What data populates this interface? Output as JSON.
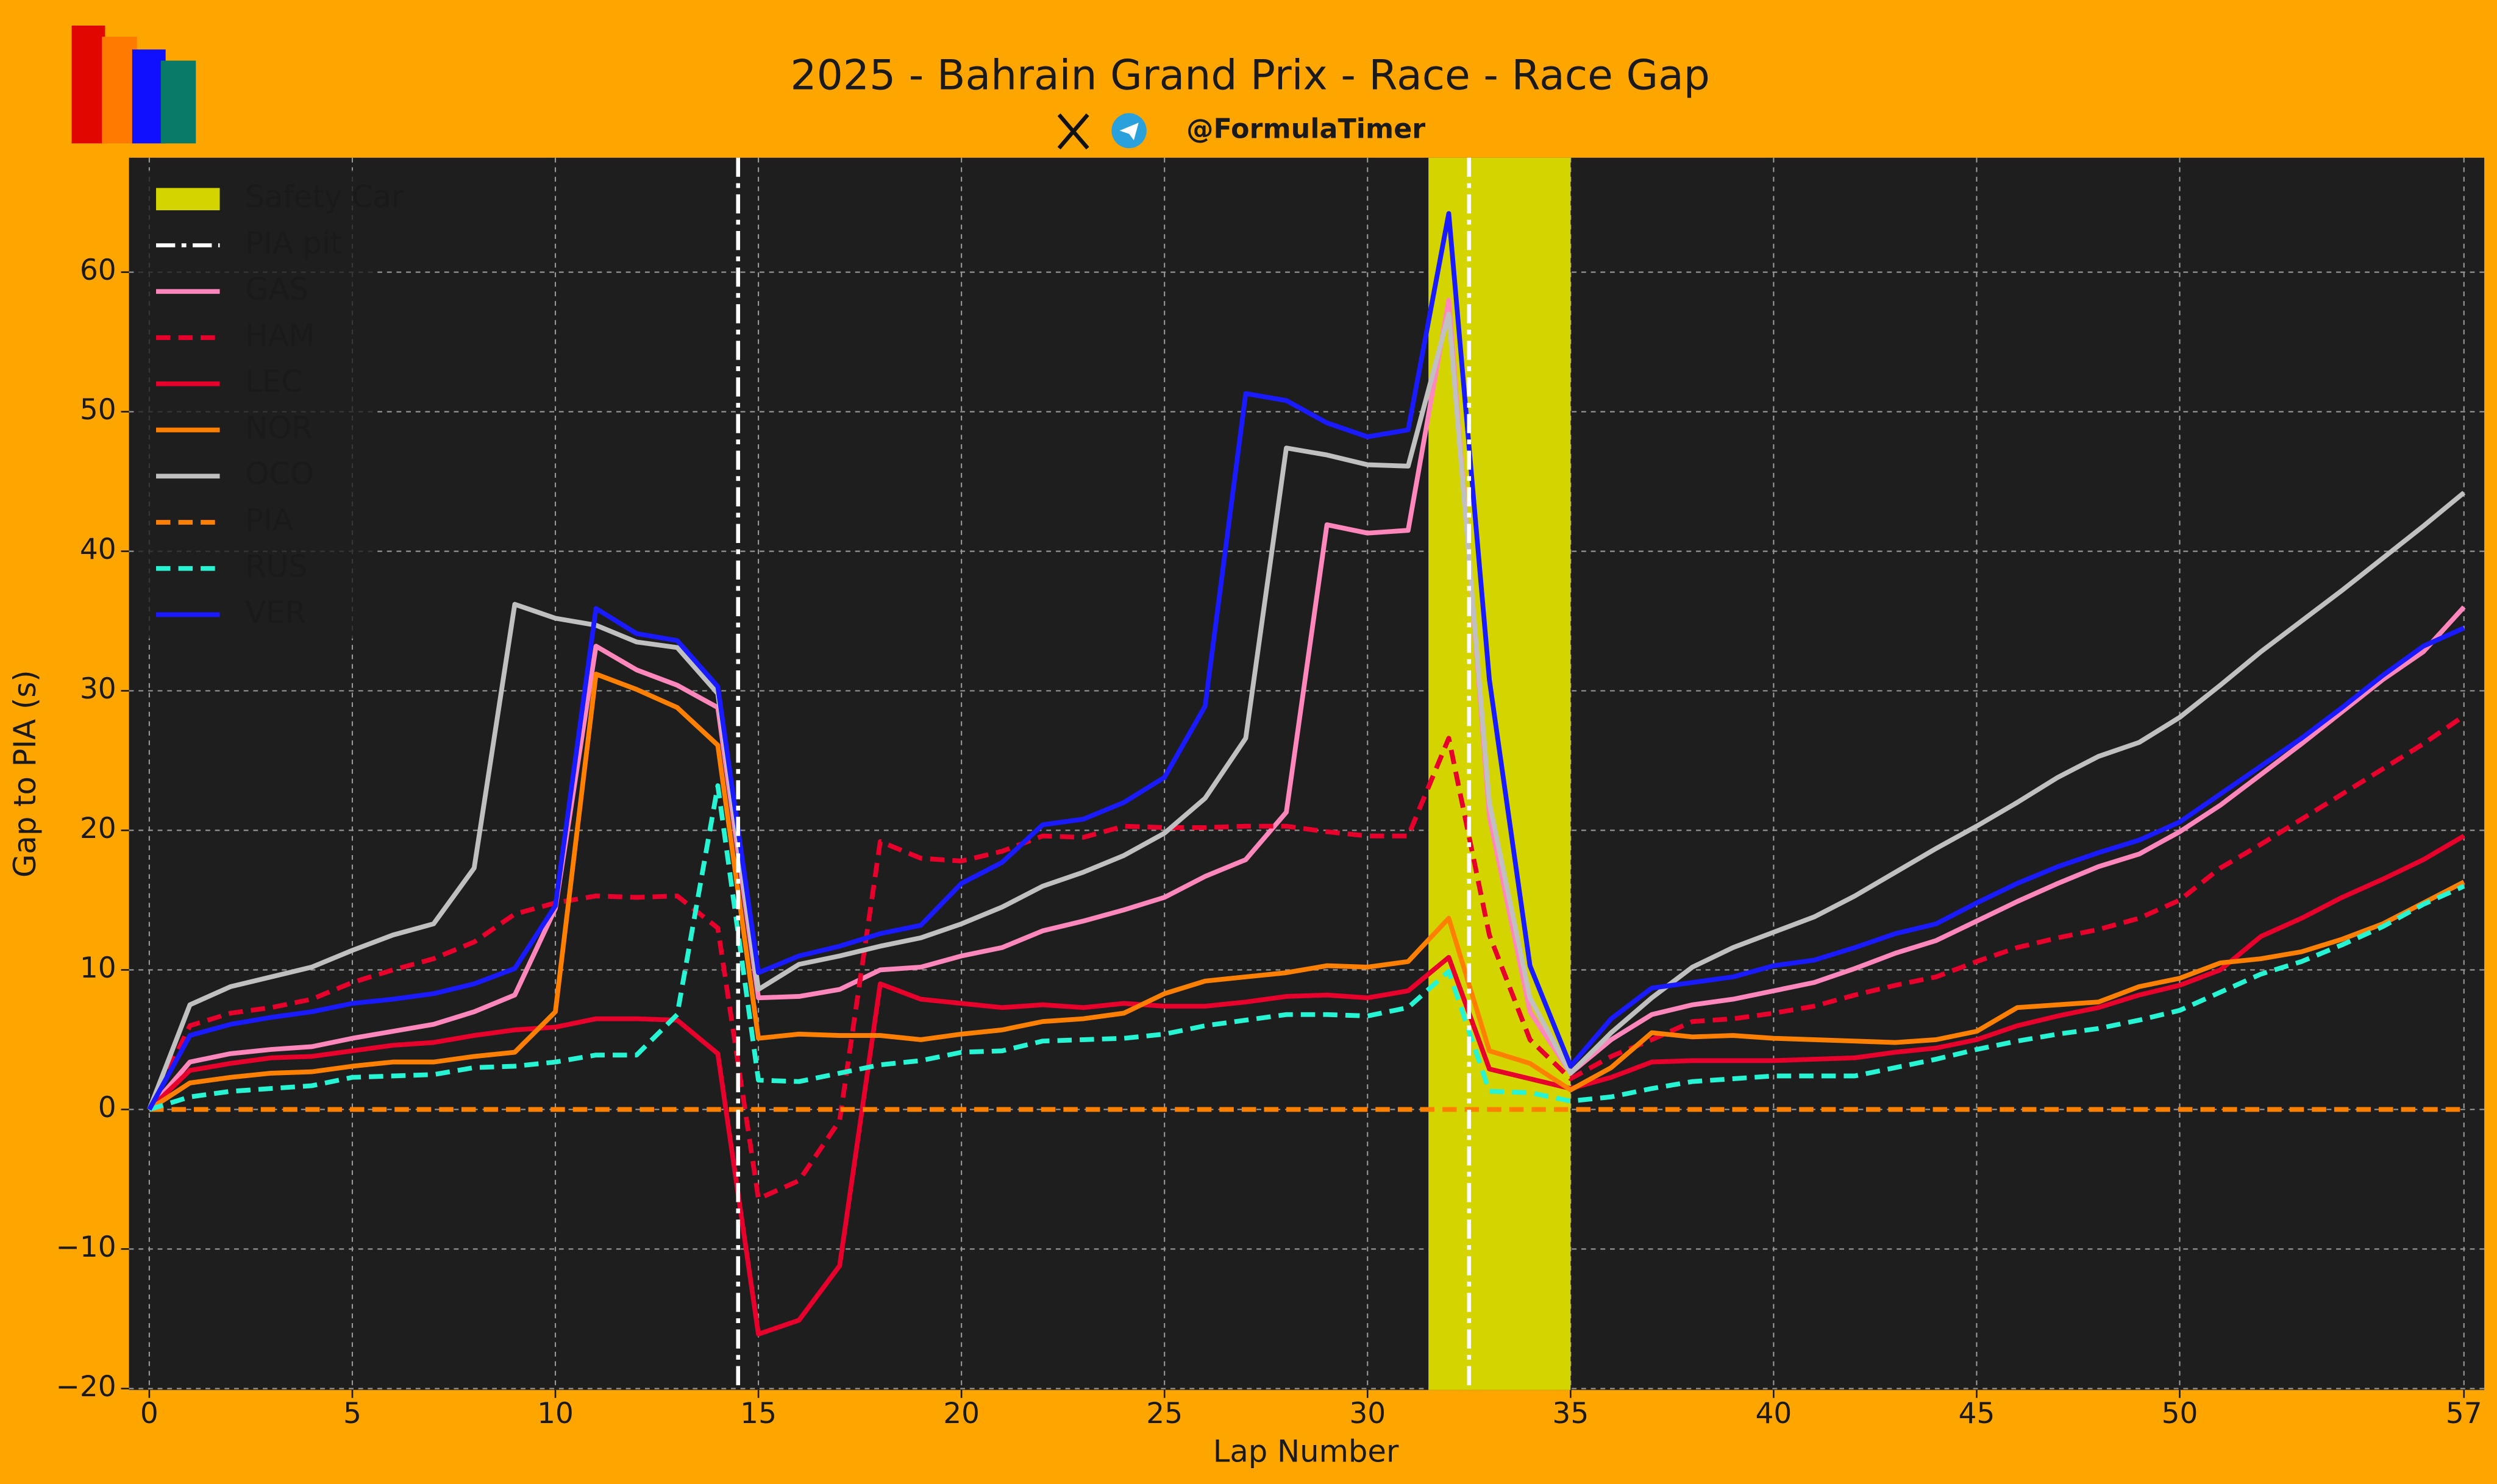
{
  "header": {
    "handle": "@FormulaTimer"
  },
  "chart_data": {
    "type": "line",
    "title": "2025 - Bahrain Grand Prix - Race - Race Gap",
    "x_label": "Lap Number",
    "y_label": "Gap to PIA (s)",
    "xlim": [
      -0.5,
      57.5
    ],
    "ylim": [
      -20.1,
      68.2
    ],
    "xticks": [
      0,
      5,
      10,
      15,
      20,
      25,
      30,
      35,
      40,
      45,
      50,
      57
    ],
    "yticks": [
      {
        "value": -20,
        "label": "−20"
      },
      {
        "value": -10,
        "label": "−10"
      },
      0,
      10,
      20,
      30,
      40,
      50,
      60
    ],
    "grid": true,
    "legend": "upper-left",
    "safety_car": {
      "label": "Safety Car",
      "start": 31.5,
      "end": 35,
      "color": "#d4d400"
    },
    "pit_stops": {
      "label": "PIA pit",
      "x": [
        14.5,
        32.5
      ],
      "color": "#ffffff"
    },
    "x": [
      0,
      1,
      2,
      3,
      4,
      5,
      6,
      7,
      8,
      9,
      10,
      11,
      12,
      13,
      14,
      15,
      16,
      17,
      18,
      19,
      20,
      21,
      22,
      23,
      24,
      25,
      26,
      27,
      28,
      29,
      30,
      31,
      32,
      33,
      34,
      35,
      36,
      37,
      38,
      39,
      40,
      41,
      42,
      43,
      44,
      45,
      46,
      47,
      48,
      49,
      50,
      51,
      52,
      53,
      54,
      55,
      56,
      57
    ],
    "series": [
      {
        "name": "GAS",
        "color": "#ff87bc",
        "dashed": false,
        "values": [
          0,
          3.4,
          4.0,
          4.3,
          4.5,
          5.1,
          5.6,
          6.1,
          7.0,
          8.2,
          14.4,
          33.2,
          31.5,
          30.4,
          28.8,
          8.0,
          8.1,
          8.6,
          10.0,
          10.2,
          11.0,
          11.6,
          12.8,
          13.5,
          14.3,
          15.2,
          16.7,
          17.9,
          21.3,
          41.9,
          41.3,
          41.5,
          58,
          21,
          7,
          2.6,
          5,
          6.8,
          7.5,
          7.9,
          8.5,
          9.1,
          10.1,
          11.2,
          12.1,
          13.5,
          14.9,
          16.2,
          17.4,
          18.3,
          19.9,
          21.8,
          24.0,
          26.2,
          28.5,
          30.8,
          32.8,
          36.0
        ]
      },
      {
        "name": "HAM",
        "color": "#e8002d",
        "dashed": true,
        "values": [
          0,
          6.0,
          6.9,
          7.3,
          7.9,
          9.1,
          10.0,
          10.8,
          12.0,
          14.0,
          14.8,
          15.3,
          15.2,
          15.3,
          13.0,
          -6.4,
          -5.1,
          -0.8,
          19.2,
          18.0,
          17.8,
          18.5,
          19.6,
          19.5,
          20.3,
          20.2,
          20.2,
          20.3,
          20.3,
          19.9,
          19.6,
          19.6,
          26.6,
          12.5,
          5.0,
          2.2,
          3.8,
          5.0,
          6.3,
          6.5,
          6.9,
          7.4,
          8.2,
          8.9,
          9.5,
          10.6,
          11.6,
          12.3,
          12.9,
          13.7,
          15.0,
          17.3,
          19.0,
          20.8,
          22.6,
          24.4,
          26.2,
          28.2
        ]
      },
      {
        "name": "LEC",
        "color": "#e8002d",
        "dashed": false,
        "values": [
          0,
          2.8,
          3.3,
          3.7,
          3.8,
          4.2,
          4.6,
          4.8,
          5.3,
          5.7,
          5.9,
          6.5,
          6.5,
          6.4,
          4.0,
          -16.1,
          -15.1,
          -11.2,
          9.0,
          7.9,
          7.6,
          7.3,
          7.5,
          7.3,
          7.6,
          7.4,
          7.4,
          7.7,
          8.1,
          8.2,
          8.0,
          8.5,
          10.9,
          2.9,
          2.2,
          1.5,
          2.3,
          3.4,
          3.5,
          3.5,
          3.5,
          3.6,
          3.7,
          4.1,
          4.4,
          5.0,
          6.0,
          6.7,
          7.3,
          8.2,
          8.9,
          10.0,
          12.4,
          13.7,
          15.2,
          16.5,
          17.9,
          19.6
        ]
      },
      {
        "name": "NOR",
        "color": "#ff8000",
        "dashed": false,
        "values": [
          0,
          1.9,
          2.3,
          2.6,
          2.7,
          3.1,
          3.4,
          3.4,
          3.8,
          4.1,
          7.0,
          31.2,
          30.1,
          28.8,
          26.1,
          5.1,
          5.4,
          5.3,
          5.3,
          5.0,
          5.4,
          5.7,
          6.3,
          6.5,
          6.9,
          8.3,
          9.2,
          9.5,
          9.8,
          10.3,
          10.2,
          10.6,
          13.7,
          4.2,
          3.3,
          1.4,
          3.0,
          5.5,
          5.2,
          5.3,
          5.1,
          5.0,
          4.9,
          4.8,
          5.0,
          5.6,
          7.3,
          7.5,
          7.7,
          8.8,
          9.4,
          10.5,
          10.8,
          11.3,
          12.2,
          13.3,
          14.8,
          16.3
        ]
      },
      {
        "name": "OCO",
        "color": "#c0c0c0",
        "dashed": false,
        "values": [
          0,
          7.5,
          8.8,
          9.5,
          10.2,
          11.4,
          12.5,
          13.3,
          17.3,
          36.2,
          35.2,
          34.7,
          33.5,
          33.1,
          29.8,
          8.6,
          10.4,
          11.0,
          11.7,
          12.3,
          13.3,
          14.5,
          16.0,
          17.0,
          18.2,
          19.8,
          22.3,
          26.6,
          47.4,
          46.9,
          46.2,
          46.1,
          57,
          22,
          8,
          2.6,
          5.5,
          8.0,
          10.2,
          11.6,
          12.7,
          13.8,
          15.3,
          17.0,
          18.7,
          20.3,
          22.0,
          23.8,
          25.3,
          26.3,
          28.1,
          30.4,
          32.8,
          35.0,
          37.2,
          39.5,
          41.8,
          44.2
        ]
      },
      {
        "name": "PIA",
        "color": "#ff8000",
        "dashed": true,
        "values": [
          0,
          0,
          0,
          0,
          0,
          0,
          0,
          0,
          0,
          0,
          0,
          0,
          0,
          0,
          0,
          0,
          0,
          0,
          0,
          0,
          0,
          0,
          0,
          0,
          0,
          0,
          0,
          0,
          0,
          0,
          0,
          0,
          0,
          0,
          0,
          0,
          0,
          0,
          0,
          0,
          0,
          0,
          0,
          0,
          0,
          0,
          0,
          0,
          0,
          0,
          0,
          0,
          0,
          0,
          0,
          0,
          0,
          0
        ]
      },
      {
        "name": "RUS",
        "color": "#27f4d2",
        "dashed": true,
        "values": [
          0,
          0.9,
          1.3,
          1.5,
          1.7,
          2.3,
          2.4,
          2.5,
          3.0,
          3.1,
          3.4,
          3.9,
          3.9,
          6.8,
          23.2,
          2.1,
          2.0,
          2.6,
          3.2,
          3.5,
          4.1,
          4.2,
          4.9,
          5.0,
          5.1,
          5.4,
          6.0,
          6.4,
          6.8,
          6.8,
          6.7,
          7.3,
          9.9,
          1.3,
          1.2,
          0.6,
          0.9,
          1.5,
          2.0,
          2.2,
          2.4,
          2.4,
          2.4,
          3.0,
          3.6,
          4.3,
          4.9,
          5.4,
          5.8,
          6.4,
          7.1,
          8.4,
          9.7,
          10.6,
          11.8,
          13.1,
          14.7,
          16.0
        ]
      },
      {
        "name": "VER",
        "color": "#1a1aff",
        "dashed": false,
        "values": [
          0,
          5.3,
          6.1,
          6.6,
          7.0,
          7.6,
          7.9,
          8.3,
          9.0,
          10.1,
          14.6,
          35.9,
          34.1,
          33.6,
          30.3,
          9.8,
          11.0,
          11.7,
          12.6,
          13.2,
          16.2,
          17.7,
          20.4,
          20.8,
          22.0,
          23.8,
          28.9,
          51.3,
          50.8,
          49.2,
          48.2,
          48.7,
          64.2,
          30.8,
          10.3,
          3.1,
          6.5,
          8.7,
          9.1,
          9.5,
          10.3,
          10.7,
          11.6,
          12.6,
          13.3,
          14.8,
          16.2,
          17.4,
          18.4,
          19.3,
          20.6,
          22.6,
          24.6,
          26.6,
          28.8,
          31.1,
          33.2,
          34.5
        ]
      }
    ]
  }
}
